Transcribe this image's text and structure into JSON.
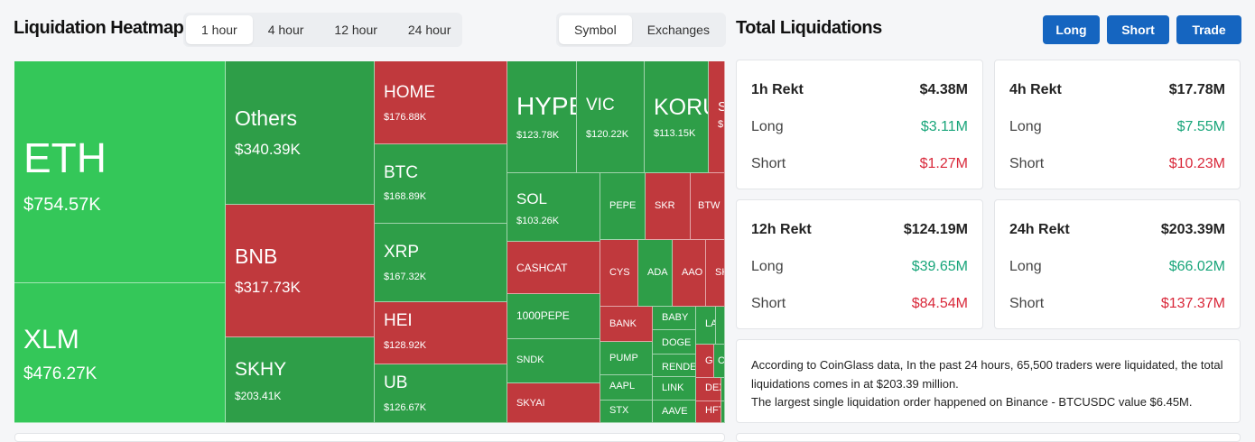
{
  "heatmap": {
    "title": "Liquidation Heatmap",
    "time_tabs": [
      "1 hour",
      "4 hour",
      "12 hour",
      "24 hour"
    ],
    "active_time_tab": "1 hour",
    "group_tabs": [
      "Symbol",
      "Exchanges"
    ],
    "active_group_tab": "Symbol",
    "colors": {
      "long_liquidation": "#2e9e48",
      "short_liquidation": "#c0393d",
      "largest": "#34c759"
    },
    "cells": [
      {
        "symbol": "ETH",
        "value": "$754.57K",
        "side": "long"
      },
      {
        "symbol": "XLM",
        "value": "$476.27K",
        "side": "long"
      },
      {
        "symbol": "Others",
        "value": "$340.39K",
        "side": "long"
      },
      {
        "symbol": "BNB",
        "value": "$317.73K",
        "side": "short"
      },
      {
        "symbol": "SKHY",
        "value": "$203.41K",
        "side": "long"
      },
      {
        "symbol": "HOME",
        "value": "$176.88K",
        "side": "short"
      },
      {
        "symbol": "BTC",
        "value": "$168.89K",
        "side": "long"
      },
      {
        "symbol": "XRP",
        "value": "$167.32K",
        "side": "long"
      },
      {
        "symbol": "HEI",
        "value": "$128.92K",
        "side": "short"
      },
      {
        "symbol": "UB",
        "value": "$126.67K",
        "side": "long"
      },
      {
        "symbol": "HYPE",
        "value": "$123.78K",
        "side": "long"
      },
      {
        "symbol": "VIC",
        "value": "$120.22K",
        "side": "long"
      },
      {
        "symbol": "KORU",
        "value": "$113.15K",
        "side": "long"
      },
      {
        "symbol": "S",
        "value": "$",
        "side": "short"
      },
      {
        "symbol": "SOL",
        "value": "$103.26K",
        "side": "long"
      },
      {
        "symbol": "CASHCAT",
        "value": "",
        "side": "short"
      },
      {
        "symbol": "1000PEPE",
        "value": "",
        "side": "long"
      },
      {
        "symbol": "SNDK",
        "value": "",
        "side": "long"
      },
      {
        "symbol": "SKYAI",
        "value": "",
        "side": "short"
      },
      {
        "symbol": "PEPE",
        "value": "",
        "side": "long"
      },
      {
        "symbol": "SKR",
        "value": "",
        "side": "short"
      },
      {
        "symbol": "BTW",
        "value": "",
        "side": "short"
      },
      {
        "symbol": "CYS",
        "value": "",
        "side": "short"
      },
      {
        "symbol": "ADA",
        "value": "",
        "side": "long"
      },
      {
        "symbol": "AAO",
        "value": "",
        "side": "short"
      },
      {
        "symbol": "SK",
        "value": "",
        "side": "short"
      },
      {
        "symbol": "",
        "value": "",
        "side": "long"
      },
      {
        "symbol": "BANK",
        "value": "",
        "side": "short"
      },
      {
        "symbol": "PUMP",
        "value": "",
        "side": "long"
      },
      {
        "symbol": "AAPL",
        "value": "",
        "side": "long"
      },
      {
        "symbol": "STX",
        "value": "",
        "side": "long"
      },
      {
        "symbol": "BABY",
        "value": "",
        "side": "long"
      },
      {
        "symbol": "DOGE",
        "value": "",
        "side": "long"
      },
      {
        "symbol": "RENDE",
        "value": "",
        "side": "long"
      },
      {
        "symbol": "LINK",
        "value": "",
        "side": "long"
      },
      {
        "symbol": "AAVE",
        "value": "",
        "side": "long"
      },
      {
        "symbol": "LA",
        "value": "",
        "side": "long"
      },
      {
        "symbol": "",
        "value": "",
        "side": "long"
      },
      {
        "symbol": "G",
        "value": "",
        "side": "short"
      },
      {
        "symbol": "C",
        "value": "",
        "side": "long"
      },
      {
        "symbol": "",
        "value": "",
        "side": "long"
      },
      {
        "symbol": "DEX",
        "value": "",
        "side": "short"
      },
      {
        "symbol": "",
        "value": "",
        "side": "long"
      },
      {
        "symbol": "HFT",
        "value": "",
        "side": "short"
      },
      {
        "symbol": "",
        "value": "",
        "side": "long"
      }
    ]
  },
  "totals": {
    "title": "Total Liquidations",
    "buttons": [
      "Long",
      "Short",
      "Trade"
    ],
    "long_label": "Long",
    "short_label": "Short",
    "cards": [
      {
        "label": "1h Rekt",
        "total": "$4.38M",
        "long": "$3.11M",
        "short": "$1.27M"
      },
      {
        "label": "4h Rekt",
        "total": "$17.78M",
        "long": "$7.55M",
        "short": "$10.23M"
      },
      {
        "label": "12h Rekt",
        "total": "$124.19M",
        "long": "$39.65M",
        "short": "$84.54M"
      },
      {
        "label": "24h Rekt",
        "total": "$203.39M",
        "long": "$66.02M",
        "short": "$137.37M"
      }
    ],
    "summary_line1": "According to CoinGlass data, In the past 24 hours, 65,500 traders were liquidated, the total liquidations comes in at $203.39 million.",
    "summary_line2": "The largest single liquidation order happened on Binance - BTCUSDC value $6.45M.",
    "accent_color": "#1565c0"
  }
}
